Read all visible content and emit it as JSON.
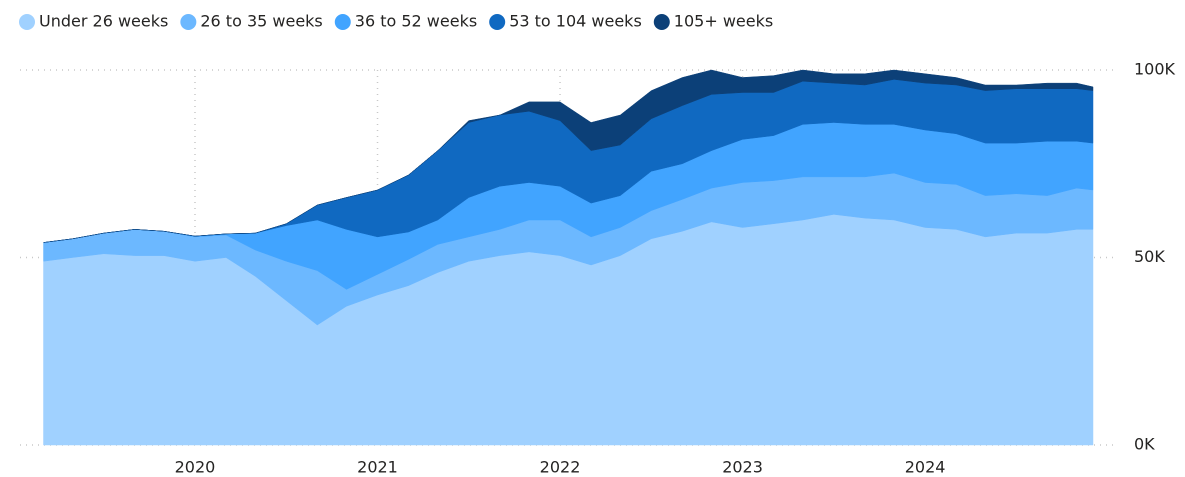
{
  "chart_data": {
    "type": "stacked_area",
    "x": [
      2019.17,
      2019.33,
      2019.5,
      2019.67,
      2019.83,
      2020,
      2020.17,
      2020.33,
      2020.5,
      2020.67,
      2020.83,
      2021,
      2021.17,
      2021.33,
      2021.5,
      2021.67,
      2021.83,
      2022,
      2022.17,
      2022.33,
      2022.5,
      2022.67,
      2022.83,
      2023,
      2023.17,
      2023.33,
      2023.5,
      2023.67,
      2023.83,
      2024,
      2024.17,
      2024.33,
      2024.5,
      2024.67,
      2024.83,
      2024.92
    ],
    "series": [
      {
        "name": "Under 26 weeks",
        "color": "#a0d1ff",
        "values": [
          49000,
          50000,
          51000,
          50500,
          50500,
          49000,
          50000,
          45000,
          38500,
          32000,
          37000,
          40000,
          42500,
          46000,
          49000,
          50500,
          51500,
          50500,
          48000,
          50500,
          55000,
          57000,
          59500,
          58000,
          59000,
          60000,
          61500,
          60500,
          60000,
          58000,
          57500,
          55500,
          56500,
          56500,
          57500,
          57500
        ]
      },
      {
        "name": "26 to 35 weeks",
        "color": "#6cb8ff",
        "values": [
          5000,
          5000,
          5500,
          7000,
          6500,
          6500,
          6000,
          7000,
          10500,
          14500,
          4500,
          5500,
          7000,
          7500,
          6500,
          7000,
          8500,
          9500,
          7500,
          7500,
          7500,
          8500,
          9000,
          12000,
          11500,
          11500,
          10000,
          11000,
          12500,
          12000,
          12000,
          11000,
          10500,
          10000,
          11000,
          10500
        ]
      },
      {
        "name": "36 to 52 weeks",
        "color": "#41a4ff",
        "values": [
          0,
          0,
          0,
          0,
          0,
          200,
          300,
          4500,
          9500,
          13500,
          16000,
          10000,
          7300,
          6500,
          10500,
          11500,
          10000,
          9000,
          9000,
          8500,
          10500,
          9500,
          10000,
          11500,
          12000,
          14000,
          14500,
          14000,
          13000,
          14000,
          13500,
          14000,
          13500,
          14500,
          12500,
          12500
        ]
      },
      {
        "name": "53 to 104 weeks",
        "color": "#1069c1",
        "values": [
          0,
          0,
          0,
          0,
          0,
          0,
          0,
          0,
          500,
          4000,
          8500,
          12500,
          15200,
          18500,
          20000,
          19000,
          19000,
          17500,
          14000,
          13500,
          14000,
          15500,
          15000,
          12500,
          11500,
          11500,
          10500,
          10500,
          12000,
          12500,
          13000,
          14000,
          14500,
          14000,
          14000,
          14000
        ]
      },
      {
        "name": "105+ weeks",
        "color": "#0c4078",
        "values": [
          0,
          0,
          0,
          0,
          0,
          0,
          0,
          0,
          0,
          0,
          0,
          0,
          0,
          0,
          500,
          0,
          2500,
          5000,
          7500,
          8000,
          7500,
          7500,
          6500,
          4000,
          4500,
          3000,
          2500,
          3000,
          2500,
          2500,
          2000,
          1500,
          1000,
          1500,
          1500,
          1000
        ]
      }
    ],
    "xlim": [
      2019.17,
      2024.92
    ],
    "xticks": [
      2020,
      2021,
      2022,
      2023,
      2024
    ],
    "ylim": [
      0,
      100000
    ],
    "yticks": [
      {
        "value": 0,
        "label": "0K"
      },
      {
        "value": 50000,
        "label": "50K"
      },
      {
        "value": 100000,
        "label": "100K"
      }
    ],
    "grid": true,
    "legend": "top-left"
  }
}
